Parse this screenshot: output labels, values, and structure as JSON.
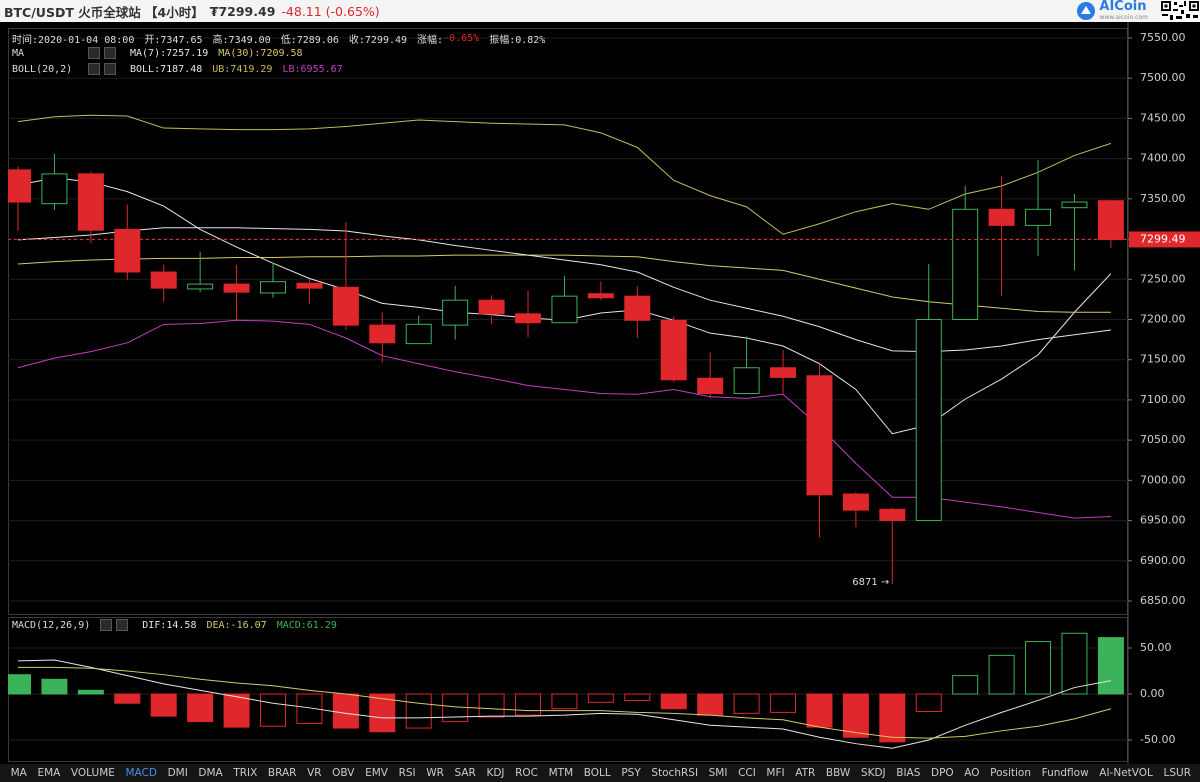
{
  "header": {
    "title": "BTC/USDT 火币全球站 【4小时】",
    "price": "₮7299.49",
    "change": "-48.11 (-0.65%)",
    "logo": "AICoin",
    "logo_url": "www.aicoin.com"
  },
  "chart_data": [
    {
      "type": "candlestick",
      "info": [
        {
          "text": "时间:2020-01-04 08:00",
          "color": "#dddddd"
        },
        {
          "text": "开:7347.65",
          "color": "#dddddd"
        },
        {
          "text": "高:7349.00",
          "color": "#dddddd"
        },
        {
          "text": "低:7289.06",
          "color": "#dddddd"
        },
        {
          "text": "收:7299.49",
          "color": "#dddddd"
        },
        {
          "text": "涨幅:",
          "color": "#dddddd"
        },
        {
          "text": "-0.65%",
          "color": "#e0272b"
        },
        {
          "text": "振幅:0.82%",
          "color": "#dddddd"
        }
      ],
      "open": [
        7386,
        7344,
        7381,
        7312,
        7259,
        7238,
        7244,
        7233,
        7245,
        7240,
        7193,
        7170,
        7193,
        7224,
        7207,
        7196,
        7232,
        7229,
        7199,
        7127,
        7108,
        7140,
        7130,
        6983,
        6964,
        6950,
        7200,
        7337,
        7317,
        7339,
        7347.65
      ],
      "high": [
        7390,
        7406,
        7384,
        7343,
        7268,
        7284,
        7268,
        7271,
        7250,
        7321,
        7209,
        7205,
        7242,
        7230,
        7236,
        7254,
        7247,
        7241,
        7204,
        7159,
        7179,
        7162,
        7147,
        6985,
        6966,
        7269,
        7366,
        7378,
        7398,
        7356,
        7349
      ],
      "low": [
        7310,
        7336,
        7295,
        7249,
        7222,
        7234,
        7199,
        7227,
        7219,
        7187,
        7147,
        7170,
        7175,
        7194,
        7178,
        7196,
        7224,
        7177,
        7122,
        7102,
        7108,
        7108,
        6929,
        6942,
        6871,
        6950,
        7200,
        7229,
        7279,
        7261,
        7289.06
      ],
      "close": [
        7346,
        7381,
        7311,
        7259,
        7239,
        7244,
        7234,
        7247,
        7239,
        7193,
        7171,
        7194,
        7224,
        7207,
        7196,
        7229,
        7227,
        7199,
        7125,
        7108,
        7140,
        7128,
        6982,
        6963,
        6950,
        7200,
        7337,
        7317,
        7337,
        7346,
        7299.49
      ],
      "up_color": "#3cb35a",
      "down_color": "#e0272b",
      "indicators": [
        {
          "label": "MA",
          "lines": [
            {
              "name": "MA(7):7257.19",
              "color": "#e6e6e6",
              "values": [
                7367,
                7376,
                7371,
                7359,
                7341,
                7312,
                7290,
                7270,
                7251,
                7237,
                7220,
                7215,
                7209,
                7206,
                7202,
                7199,
                7208,
                7212,
                7199,
                7183,
                7177,
                7167,
                7145,
                7113,
                7058,
                7069,
                7101,
                7126,
                7156,
                7209,
                7257
              ]
            },
            {
              "name": "MA(30):7209.58",
              "color": "#d8c86a",
              "values": [
                7269,
                7272,
                7274,
                7275,
                7276,
                7276,
                7277,
                7277,
                7278,
                7278,
                7279,
                7279,
                7280,
                7280,
                7280,
                7280,
                7279,
                7278,
                7272,
                7267,
                7264,
                7261,
                7250,
                7239,
                7228,
                7222,
                7218,
                7214,
                7210,
                7209,
                7209
              ]
            }
          ]
        },
        {
          "label": "BOLL(20,2)",
          "lines": [
            {
              "name": "BOLL:7187.48",
              "color": "#e6e6e6",
              "values": [
                7299,
                7302,
                7305,
                7310,
                7314,
                7314,
                7314,
                7313,
                7312,
                7310,
                7304,
                7299,
                7292,
                7286,
                7280,
                7274,
                7268,
                7259,
                7240,
                7224,
                7214,
                7204,
                7191,
                7175,
                7161,
                7160,
                7162,
                7167,
                7175,
                7181,
                7187
              ]
            },
            {
              "name": "UB:7419.29",
              "color": "#c9b95a",
              "values": [
                7446,
                7452,
                7454,
                7453,
                7438,
                7437,
                7436,
                7436,
                7437,
                7440,
                7444,
                7448,
                7446,
                7444,
                7443,
                7442,
                7432,
                7414,
                7373,
                7354,
                7340,
                7306,
                7319,
                7334,
                7344,
                7337,
                7356,
                7366,
                7383,
                7404,
                7419
              ]
            },
            {
              "name": "LB:6955.67",
              "color": "#c040c0",
              "values": [
                7140,
                7152,
                7160,
                7171,
                7194,
                7195,
                7199,
                7198,
                7194,
                7177,
                7155,
                7145,
                7135,
                7127,
                7118,
                7113,
                7108,
                7107,
                7113,
                7104,
                7102,
                7107,
                7067,
                7021,
                6979,
                6979,
                6973,
                6967,
                6960,
                6953,
                6955
              ]
            }
          ]
        }
      ],
      "last_price": {
        "value": 7299.49,
        "label": "7299.49",
        "color": "#e0272b"
      },
      "low_label": "6871 →",
      "ylim": [
        6832.6,
        7562.4
      ],
      "yticks": [
        {
          "value": 6850,
          "label": "6850.00"
        },
        {
          "value": 6900,
          "label": "6900.00"
        },
        {
          "value": 6950,
          "label": "6950.00"
        },
        {
          "value": 7000,
          "label": "7000.00"
        },
        {
          "value": 7050,
          "label": "7050.00"
        },
        {
          "value": 7100,
          "label": "7100.00"
        },
        {
          "value": 7150,
          "label": "7150.00"
        },
        {
          "value": 7200,
          "label": "7200.00"
        },
        {
          "value": 7250,
          "label": "7250.00"
        },
        {
          "value": 7300,
          "label": "7300.00"
        },
        {
          "value": 7350,
          "label": "7350.00"
        },
        {
          "value": 7400,
          "label": "7400.00"
        },
        {
          "value": 7450,
          "label": "7450.00"
        },
        {
          "value": 7500,
          "label": "7500.00"
        },
        {
          "value": 7550,
          "label": "7550.00"
        }
      ],
      "grid": true
    },
    {
      "type": "macd",
      "label": "MACD(12,26,9)",
      "histogram": {
        "name": "MACD:61.29",
        "values": [
          21,
          16,
          4,
          -10,
          -24,
          -30,
          -36,
          -35,
          -32,
          -37,
          -41,
          -37,
          -30,
          -25,
          -23,
          -16,
          -9,
          -7,
          -16,
          -23,
          -21,
          -20,
          -36,
          -47,
          -52,
          -19,
          20,
          42,
          57,
          66,
          61.29
        ],
        "up_color": "#3cb35a",
        "down_color": "#e0272b"
      },
      "lines": [
        {
          "name": "DIF:14.58",
          "color": "#e6e6e6",
          "values": [
            36,
            37,
            29,
            20,
            11,
            4,
            -3,
            -10,
            -15,
            -21,
            -26,
            -26,
            -25,
            -24,
            -24,
            -23,
            -21,
            -22,
            -28,
            -34,
            -36,
            -38,
            -47,
            -54,
            -59,
            -50,
            -34,
            -20,
            -7,
            7,
            14.58
          ]
        },
        {
          "name": "DEA:-16.07",
          "color": "#d8c86a",
          "values": [
            29,
            29,
            28,
            25,
            21,
            16,
            12,
            9,
            4,
            0,
            -5,
            -10,
            -14,
            -16,
            -18,
            -18,
            -18,
            -20,
            -21,
            -23,
            -26,
            -28,
            -36,
            -42,
            -47,
            -48,
            -46,
            -40,
            -35,
            -27,
            -16.07
          ]
        }
      ],
      "ylim": [
        -73.9,
        83.7
      ],
      "yticks": [
        {
          "value": -50,
          "label": "-50.00"
        },
        {
          "value": 0,
          "label": "0.00"
        },
        {
          "value": 50,
          "label": "50.00"
        }
      ],
      "grid": true
    }
  ],
  "tabs": [
    "MA",
    "EMA",
    "VOLUME",
    "MACD",
    "DMI",
    "DMA",
    "TRIX",
    "BRAR",
    "VR",
    "OBV",
    "EMV",
    "RSI",
    "WR",
    "SAR",
    "KDJ",
    "ROC",
    "MTM",
    "BOLL",
    "PSY",
    "StochRSI",
    "SMI",
    "CCI",
    "MFI",
    "ATR",
    "BBW",
    "SKDJ",
    "BIAS",
    "DPO",
    "AO",
    "Position",
    "Fundflow",
    "AI-NetVOL",
    "LSUR"
  ],
  "active_tab": 3
}
